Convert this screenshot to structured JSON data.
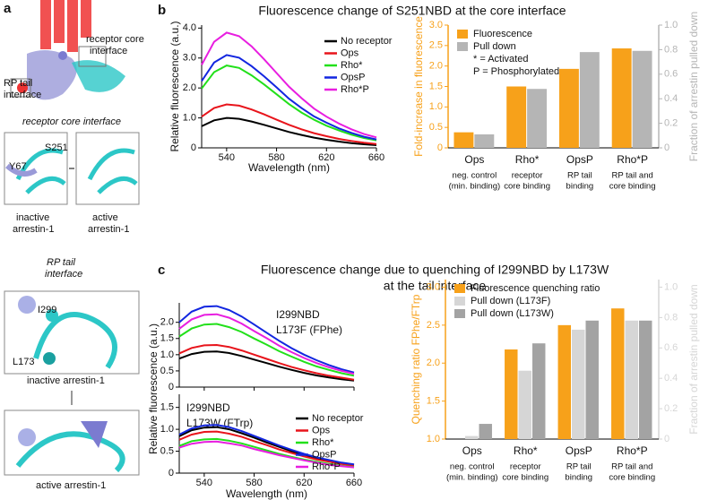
{
  "panel_labels": [
    "a",
    "b",
    "c"
  ],
  "panel_a": [
    "receptor core",
    "interface",
    "RP tail",
    "interface",
    "receptor core interface",
    "S251",
    "Y67",
    "inactive",
    "arrestin-1",
    "active",
    "arrestin-1",
    "RP tail",
    "interface",
    "I299",
    "L173",
    "inactive arrestin-1",
    "active arrestin-1"
  ],
  "chart_data": [
    {
      "type": "line",
      "title": [
        "Fluorescence change of S251NBD at the core interface"
      ],
      "x": [
        520,
        530,
        540,
        550,
        560,
        570,
        580,
        590,
        600,
        610,
        620,
        630,
        640,
        650,
        660
      ],
      "xlim": [
        520,
        660
      ],
      "xticks": [
        540,
        580,
        620,
        660
      ],
      "xlabel": "Wavelength (nm)",
      "ylim": [
        0,
        4.1
      ],
      "yticks": [
        0,
        {
          "value": 1,
          "label": "1.0"
        },
        {
          "value": 2,
          "label": "2.0"
        },
        {
          "value": 3,
          "label": "3.0"
        },
        {
          "value": 4,
          "label": "4.0"
        }
      ],
      "ylabel": "Relative fluorescence (a.u.)",
      "series": [
        {
          "name": "No receptor",
          "color": "#000000",
          "values": [
            0.72,
            0.92,
            1.0,
            0.97,
            0.88,
            0.77,
            0.65,
            0.53,
            0.43,
            0.34,
            0.27,
            0.21,
            0.16,
            0.12,
            0.09
          ]
        },
        {
          "name": "Ops",
          "color": "#e8141b",
          "values": [
            1.04,
            1.33,
            1.45,
            1.41,
            1.28,
            1.12,
            0.94,
            0.77,
            0.62,
            0.49,
            0.39,
            0.3,
            0.23,
            0.17,
            0.13
          ]
        },
        {
          "name": "Rho*",
          "color": "#22e01a",
          "values": [
            1.98,
            2.53,
            2.75,
            2.67,
            2.42,
            2.12,
            1.79,
            1.46,
            1.18,
            0.94,
            0.74,
            0.58,
            0.44,
            0.33,
            0.25
          ]
        },
        {
          "name": "OpsP",
          "color": "#1226e0",
          "values": [
            2.23,
            2.85,
            3.1,
            3.01,
            2.73,
            2.39,
            2.02,
            1.64,
            1.33,
            1.05,
            0.84,
            0.65,
            0.5,
            0.37,
            0.28
          ]
        },
        {
          "name": "Rho*P",
          "color": "#e81ee0",
          "values": [
            2.77,
            3.54,
            3.85,
            3.73,
            3.39,
            2.96,
            2.5,
            2.04,
            1.66,
            1.31,
            1.04,
            0.81,
            0.62,
            0.46,
            0.35
          ]
        }
      ]
    },
    {
      "type": "bar",
      "categories": [
        "Ops",
        "Rho*",
        "OpsP",
        "Rho*P"
      ],
      "category_notes": [
        [
          "neg. control",
          "(min. binding)"
        ],
        [
          "receptor",
          "core binding"
        ],
        [
          "RP tail",
          "binding"
        ],
        [
          "RP tail and",
          "core binding"
        ]
      ],
      "ylim": [
        0,
        3
      ],
      "yticks": [
        0,
        0.5,
        {
          "value": 1,
          "label": "1.0"
        },
        1.5,
        {
          "value": 2,
          "label": "2.0"
        },
        2.5,
        {
          "value": 3,
          "label": "3.0"
        }
      ],
      "ylabel": "Fold-increase in fluorescence",
      "y2lim": [
        0,
        1
      ],
      "y2ticks": [
        0,
        0.2,
        0.4,
        0.6,
        0.8,
        {
          "value": 1,
          "label": "1.0"
        }
      ],
      "y2label": "Fraction of arrestin pulled down",
      "legend_notes": [
        "* = Activated",
        "P = Phosphorylated"
      ],
      "series": [
        {
          "name": "Fluorescence",
          "color": "#f7a11a",
          "axis": "y",
          "values": [
            0.38,
            1.5,
            1.93,
            2.43
          ]
        },
        {
          "name": "Pull down",
          "color": "#b5b5b5",
          "axis": "y2",
          "values": [
            0.11,
            0.48,
            0.78,
            0.79
          ]
        }
      ]
    },
    {
      "type": "line",
      "title": [
        "Fluorescence change due to quenching of I299NBD by L173W",
        "at the tail interface"
      ],
      "annotations": [
        "I299NBD",
        "L173F (FPhe)"
      ],
      "x": [
        520,
        530,
        540,
        550,
        560,
        570,
        580,
        590,
        600,
        610,
        620,
        630,
        640,
        650,
        660
      ],
      "xlim": [
        520,
        660
      ],
      "xticks": [
        540,
        580,
        620,
        660
      ],
      "ylim": [
        0,
        2.6
      ],
      "yticks": [
        0,
        0.5,
        {
          "value": 1,
          "label": "1.0"
        },
        1.5,
        {
          "value": 2,
          "label": "2.0"
        }
      ],
      "series": [
        {
          "color": "#000000",
          "values": [
            0.88,
            1.02,
            1.09,
            1.1,
            1.05,
            0.96,
            0.85,
            0.74,
            0.63,
            0.53,
            0.44,
            0.36,
            0.3,
            0.24,
            0.2
          ]
        },
        {
          "color": "#e8141b",
          "values": [
            1.04,
            1.21,
            1.29,
            1.3,
            1.24,
            1.13,
            1.0,
            0.87,
            0.74,
            0.62,
            0.52,
            0.43,
            0.35,
            0.29,
            0.23
          ]
        },
        {
          "color": "#22e01a",
          "values": [
            1.56,
            1.81,
            1.93,
            1.95,
            1.85,
            1.7,
            1.5,
            1.31,
            1.11,
            0.94,
            0.78,
            0.64,
            0.53,
            0.43,
            0.35
          ]
        },
        {
          "color": "#1226e0",
          "values": [
            2.0,
            2.33,
            2.48,
            2.5,
            2.38,
            2.18,
            1.93,
            1.68,
            1.43,
            1.2,
            1.0,
            0.83,
            0.68,
            0.55,
            0.45
          ]
        },
        {
          "color": "#e81ee0",
          "values": [
            1.8,
            2.09,
            2.23,
            2.25,
            2.14,
            1.96,
            1.73,
            1.51,
            1.28,
            1.08,
            0.9,
            0.74,
            0.61,
            0.5,
            0.41
          ]
        }
      ]
    },
    {
      "type": "line",
      "annotations": [
        "I299NBD",
        "L173W (FTrp)"
      ],
      "x": [
        520,
        530,
        540,
        550,
        560,
        570,
        580,
        590,
        600,
        610,
        620,
        630,
        640,
        650,
        660
      ],
      "xlim": [
        520,
        660
      ],
      "xticks": [
        540,
        580,
        620,
        660
      ],
      "xlabel": "Wavelength (nm)",
      "ylim": [
        0,
        1.8
      ],
      "yticks": [
        0,
        0.5,
        {
          "value": 1,
          "label": "1.0"
        },
        1.5
      ],
      "ylabel": "Relative fluorescence (a.u.)",
      "series": [
        {
          "name": "No receptor",
          "color": "#000000",
          "values": [
            0.84,
            0.98,
            1.04,
            1.05,
            1.0,
            0.91,
            0.81,
            0.7,
            0.6,
            0.5,
            0.42,
            0.35,
            0.28,
            0.23,
            0.19
          ]
        },
        {
          "name": "Ops",
          "color": "#e8141b",
          "values": [
            0.76,
            0.88,
            0.94,
            0.95,
            0.9,
            0.83,
            0.73,
            0.64,
            0.54,
            0.46,
            0.38,
            0.31,
            0.26,
            0.21,
            0.17
          ]
        },
        {
          "name": "Rho*",
          "color": "#22e01a",
          "values": [
            0.62,
            0.73,
            0.77,
            0.78,
            0.74,
            0.68,
            0.6,
            0.52,
            0.44,
            0.37,
            0.31,
            0.26,
            0.21,
            0.17,
            0.14
          ]
        },
        {
          "name": "OpsP",
          "color": "#1226e0",
          "values": [
            0.88,
            1.02,
            1.09,
            1.1,
            1.05,
            0.96,
            0.85,
            0.74,
            0.63,
            0.53,
            0.44,
            0.36,
            0.3,
            0.24,
            0.2
          ]
        },
        {
          "name": "Rho*P",
          "color": "#e81ee0",
          "values": [
            0.58,
            0.67,
            0.71,
            0.72,
            0.68,
            0.63,
            0.55,
            0.48,
            0.41,
            0.35,
            0.29,
            0.24,
            0.19,
            0.16,
            0.13
          ]
        }
      ]
    },
    {
      "type": "bar",
      "categories": [
        "Ops",
        "Rho*",
        "OpsP",
        "Rho*P"
      ],
      "category_notes": [
        [
          "neg. control",
          "(min. binding)"
        ],
        [
          "receptor",
          "core binding"
        ],
        [
          "RP tail",
          "binding"
        ],
        [
          "RP tail and",
          "core binding"
        ]
      ],
      "ylim": [
        1,
        3.1
      ],
      "yticks": [
        {
          "value": 1,
          "label": "1.0"
        },
        1.5,
        {
          "value": 2,
          "label": "2.0"
        },
        2.5,
        {
          "value": 3,
          "label": "3.0"
        }
      ],
      "ylabel": "Quenching ratio FPhe/FTrp",
      "y2lim": [
        0,
        1.05
      ],
      "y2ticks": [
        0,
        0.2,
        0.4,
        0.6,
        0.8,
        {
          "value": 1,
          "label": "1.0"
        }
      ],
      "y2label": "Fraction of arrestin pulled down",
      "series": [
        {
          "name": "Fluorescence quenching ratio",
          "color": "#f7a11a",
          "axis": "y",
          "values": [
            1.0,
            2.18,
            2.5,
            2.72
          ]
        },
        {
          "name": "Pull down (L173F)",
          "color": "#d6d6d6",
          "axis": "y2",
          "values": [
            0.02,
            0.45,
            0.72,
            0.78
          ]
        },
        {
          "name": "Pull down (L173W)",
          "color": "#a3a3a3",
          "axis": "y2",
          "values": [
            0.1,
            0.63,
            0.78,
            0.78
          ]
        }
      ]
    }
  ]
}
